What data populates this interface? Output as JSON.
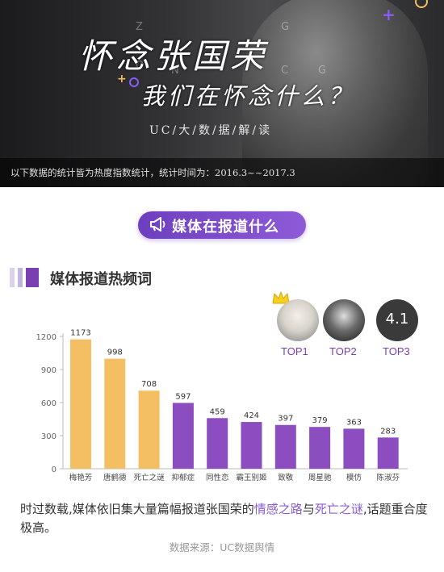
{
  "banner": {
    "title_line1": "怀念张国荣",
    "title_line2": "我们在怀念什么？",
    "subtitle": "UC/大/数/据/解/读",
    "note": "以下数据的统计皆为热度指数统计，统计时间为：2016.3~~2017.3",
    "watermark_letters": [
      "Z",
      "G",
      "O",
      "N",
      "C",
      "G"
    ]
  },
  "section_pill": {
    "label": "媒体在报道什么",
    "icon": "megaphone-icon"
  },
  "heading": {
    "text": "媒体报道热频词"
  },
  "top3": [
    {
      "label": "TOP1",
      "avatar_text": ""
    },
    {
      "label": "TOP2",
      "avatar_text": ""
    },
    {
      "label": "TOP3",
      "avatar_text": "4.1"
    }
  ],
  "chart_data": {
    "type": "bar",
    "categories": [
      "梅艳芳",
      "唐鹤德",
      "死亡之谜",
      "抑郁症",
      "同性恋",
      "霸王别姬",
      "致敬",
      "周星驰",
      "模仿",
      "陈淑芬"
    ],
    "values": [
      1173,
      998,
      708,
      597,
      459,
      424,
      397,
      379,
      363,
      283
    ],
    "ylim": [
      0,
      1200
    ],
    "yticks": [
      0,
      300,
      600,
      900,
      1200
    ],
    "bar_colors": [
      "#f4bf62",
      "#f4bf62",
      "#f4bf62",
      "#8b4dc0",
      "#8b4dc0",
      "#8b4dc0",
      "#8b4dc0",
      "#8b4dc0",
      "#8b4dc0",
      "#8b4dc0"
    ],
    "title": "",
    "xlabel": "",
    "ylabel": "",
    "grid": false,
    "data_labels": true
  },
  "caption": {
    "part1": "时过数载,媒体依旧集大量篇幅报道张国荣的",
    "highlight1": "情感之路",
    "part2": "与",
    "highlight2": "死亡之谜",
    "part3": ",话题重合度极高。"
  },
  "source": "数据来源：UC数据舆情",
  "colors": {
    "accent": "#7b3fb4",
    "gold": "#f4bf62",
    "purple_bar": "#8b4dc0",
    "highlight_text": "#8a5bd0"
  }
}
